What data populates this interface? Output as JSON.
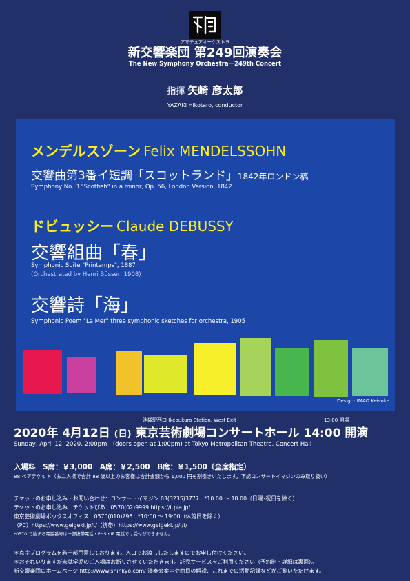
{
  "header": {
    "logo_icon": "orchestra-logo-icon",
    "furigana": "アマチュアオーケストラ",
    "title": "新交響楽団 第249回演奏会",
    "subtitle": "The New Symphony Orchestra－249th Concert",
    "conductor_label": "指揮",
    "conductor_name": "矢崎 彦太郎",
    "conductor_en": "YAZAKI Hikotaro, conductor"
  },
  "program": {
    "composers": [
      {
        "name_ja": "メンデルスゾーン",
        "name_en": "Felix MENDELSSOHN",
        "works": [
          {
            "title_ja": "交響曲第3番イ短調「スコットランド」",
            "title_ja_small": "1842年ロンドン稿",
            "title_en": "Symphony No. 3 \"Scottish\" in a minor, Op. 56, London Version, 1842"
          }
        ]
      },
      {
        "name_ja": "ドビュッシー",
        "name_en": "Claude DEBUSSY",
        "works": [
          {
            "title_ja": "交響組曲「春」",
            "title_en": "Symphonic Suite \"Printemps\", 1887",
            "note": "(Orchestrated by Henri Büsser, 1908)"
          },
          {
            "title_ja": "交響詩「海」",
            "title_en": "Symphonic Poem \"La Mer\" three symphonic sketches for orchestra, 1905"
          }
        ]
      }
    ],
    "design_credit": "Design: IMAO Keisuke",
    "block_colors": [
      "#e8174e",
      "#c93fa0",
      "#f2c22a",
      "#dfe829",
      "#f6ef2a",
      "#e4e51e",
      "#a6d45a",
      "#47b64f",
      "#7fc23f",
      "#6cc49b"
    ]
  },
  "event": {
    "venue_en_small": "池袋駅西口 Ikebukuro Station, West Exit",
    "open_time": "13:00 開場",
    "date_ja": "2020年 4月12日",
    "weekday": "(日)",
    "venue_ja": "東京芸術劇場コンサートホール",
    "start": "14:00 開演",
    "date_en": "Sunday, April 12, 2020, 2:00pm　(doors open at 1:00pm) at Tokyo Metropolitan Theatre, Concert Hall"
  },
  "tickets": {
    "price_line": "入場料　S席：￥3,000　A席：￥2,500　B席：￥1,500（全席指定）",
    "pair_note": "88 ペアチケット（お二人様で合計 88 歳以上のお客様は合計金額から 1,000 円を割引きいたします。下記コンサートイマジンのみ取り扱い）",
    "lines": [
      "チケットのお申し込み・お問い合わせ：コンサートイマジン 03(3235)3777　*10:00 ～ 18:00（日曜･祝日を除く）",
      "チケットのお申し込み：チケットぴあ：0570(02)9999  https://t.pia.jp/",
      "東京芸術劇場ボックスオフィス：0570(010)296　*10:00 ～ 19:00（休館日を除く）",
      "（PC）https://www.geigeki.jp/t/（携帯）https://www.geigeki.jp/i/t/"
    ],
    "small_note": "*0570 で始まる電話番号は一部携帯電話・PHS・IP 電話では受付ができません。"
  },
  "footer": {
    "lines": [
      "＊点字プログラムを若干部用意しております。入口でお渡ししたしますのでお申し付けください。",
      "＊おそれいりますが未就学児のご入場はお断りさせていただきます。託児サービスをご利用ください（予約制・詳細は裏面）。",
      "新交響楽団のホームページ http://www.shinkyo.com/ 演奏会案内や曲目の解説、これまでの活動記録などがご覧いただけます。"
    ]
  }
}
